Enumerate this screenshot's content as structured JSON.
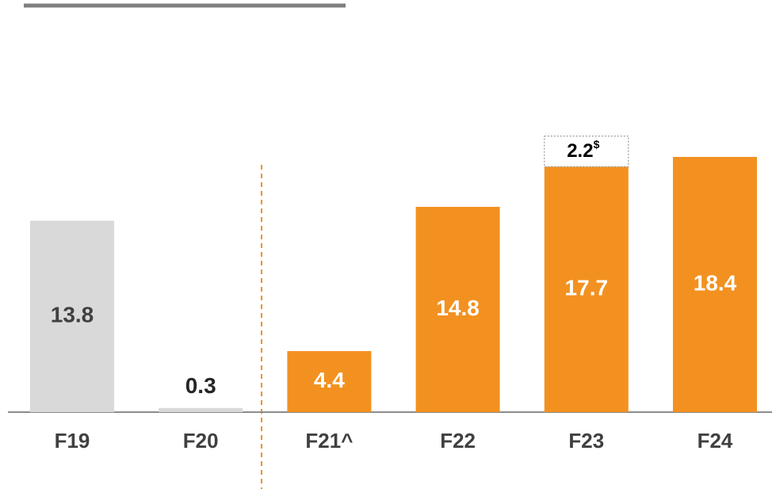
{
  "chart_data": {
    "type": "bar",
    "categories": [
      "F19",
      "F20",
      "F21^",
      "F22",
      "F23",
      "F24"
    ],
    "series": [
      {
        "values": [
          13.8,
          0.3,
          4.4,
          14.8,
          17.7,
          18.4
        ],
        "colors": [
          "#d9d9d9",
          "#d9d9d9",
          "#f39120",
          "#f39120",
          "#f39120",
          "#f39120"
        ],
        "label_colors": [
          "#404040",
          "#262626",
          "#ffffff",
          "#ffffff",
          "#ffffff",
          "#ffffff"
        ]
      },
      {
        "values": [
          null,
          null,
          null,
          null,
          2.2,
          null
        ],
        "color": "#ffffff",
        "border": "dotted",
        "note_marker": "$"
      }
    ]
  }
}
